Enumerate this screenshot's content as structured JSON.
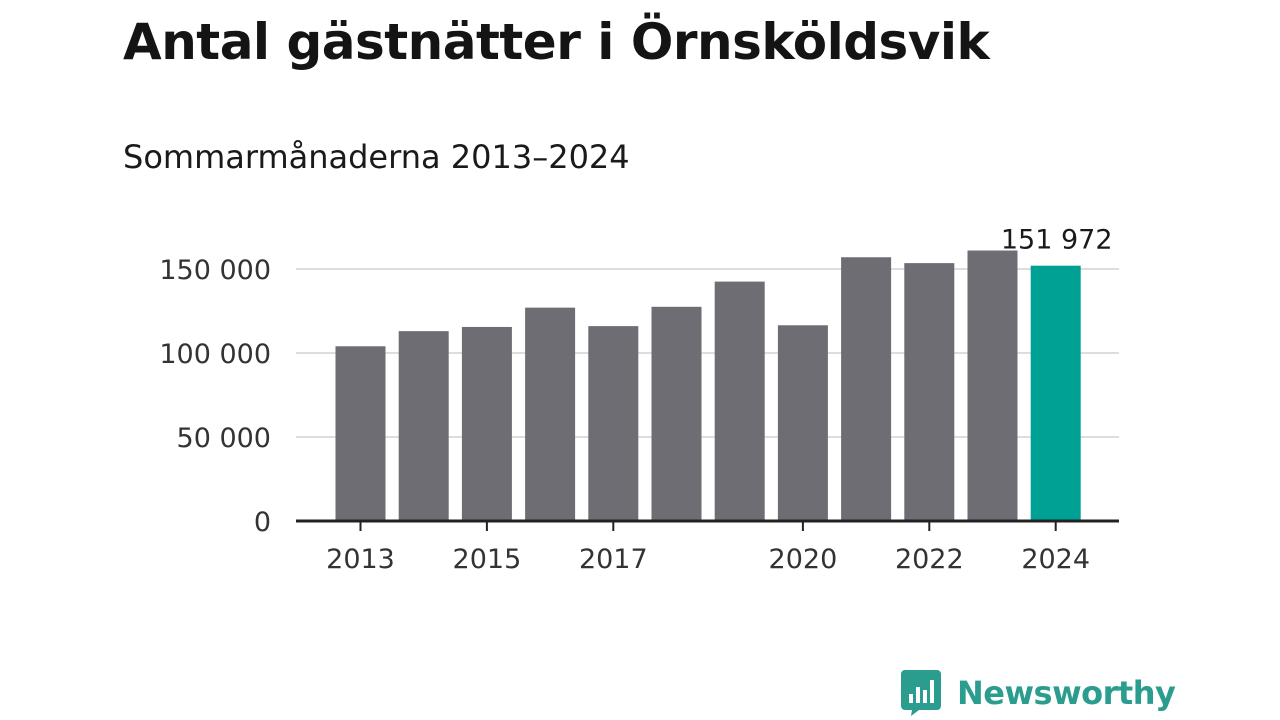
{
  "header": {
    "title": "Antal gästnätter i Örnsköldsvik",
    "subtitle": "Sommarmånaderna 2013–2024"
  },
  "chart_data": {
    "type": "bar",
    "title": "Antal gästnätter i Örnsköldsvik",
    "subtitle": "Sommarmånaderna 2013–2024",
    "xlabel": "",
    "ylabel": "",
    "categories": [
      "2013",
      "2014",
      "2015",
      "2016",
      "2017",
      "2018",
      "2019",
      "2020",
      "2021",
      "2022",
      "2023",
      "2024"
    ],
    "values": [
      104000,
      113000,
      115500,
      127000,
      116000,
      127500,
      142500,
      116500,
      157000,
      153500,
      161000,
      151972
    ],
    "ylim": [
      0,
      160000
    ],
    "yticks": [
      0,
      50000,
      100000,
      150000
    ],
    "ytick_labels": [
      "0",
      "50 000",
      "100 000",
      "150 000"
    ],
    "xtick_labels": [
      "2013",
      "2015",
      "2017",
      "2020",
      "2022",
      "2024"
    ],
    "grid": true,
    "highlight_index": 11,
    "highlight_label": "151 972",
    "colors": {
      "bar": "#6e6d74",
      "highlight": "#00a195",
      "grid": "#dddddd",
      "axis": "#222222"
    }
  },
  "logo": {
    "text": "Newsworthy",
    "icon": "bar-chart-speech-bubble-icon",
    "color": "#2a9d8f"
  }
}
